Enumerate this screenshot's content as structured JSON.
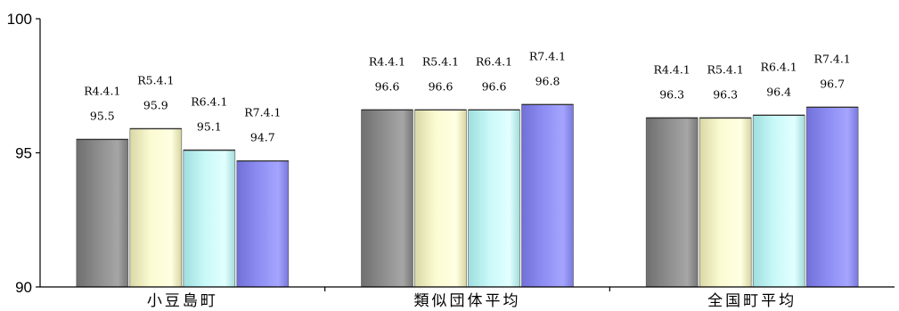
{
  "chart_data": {
    "type": "bar",
    "categories": [
      "小豆島町",
      "類似団体平均",
      "全国町平均"
    ],
    "series": [
      {
        "name": "R4.4.1",
        "values": [
          95.5,
          96.6,
          96.3
        ]
      },
      {
        "name": "R5.4.1",
        "values": [
          95.9,
          96.6,
          96.3
        ]
      },
      {
        "name": "R6.4.1",
        "values": [
          95.1,
          96.6,
          96.4
        ]
      },
      {
        "name": "R7.4.1",
        "values": [
          94.7,
          96.8,
          96.7
        ]
      }
    ],
    "ylim": [
      90,
      100
    ],
    "yticks": [
      90,
      95,
      100
    ],
    "title": "",
    "xlabel": "",
    "ylabel": "",
    "grid": false,
    "legend": "none",
    "colors": {
      "R4.4.1": [
        "#6f6f6f",
        "#8c8c8c",
        "#a6a6a6",
        "#777777"
      ],
      "R5.4.1": [
        "#d9d8a6",
        "#fbfbd2",
        "#ffffe3",
        "#d6d5a0"
      ],
      "R6.4.1": [
        "#9fdede",
        "#c8f8f8",
        "#e2ffff",
        "#a3dcdc"
      ],
      "R7.4.1": [
        "#7070d8",
        "#8c8cf2",
        "#a5a5ff",
        "#7878dc"
      ]
    }
  }
}
